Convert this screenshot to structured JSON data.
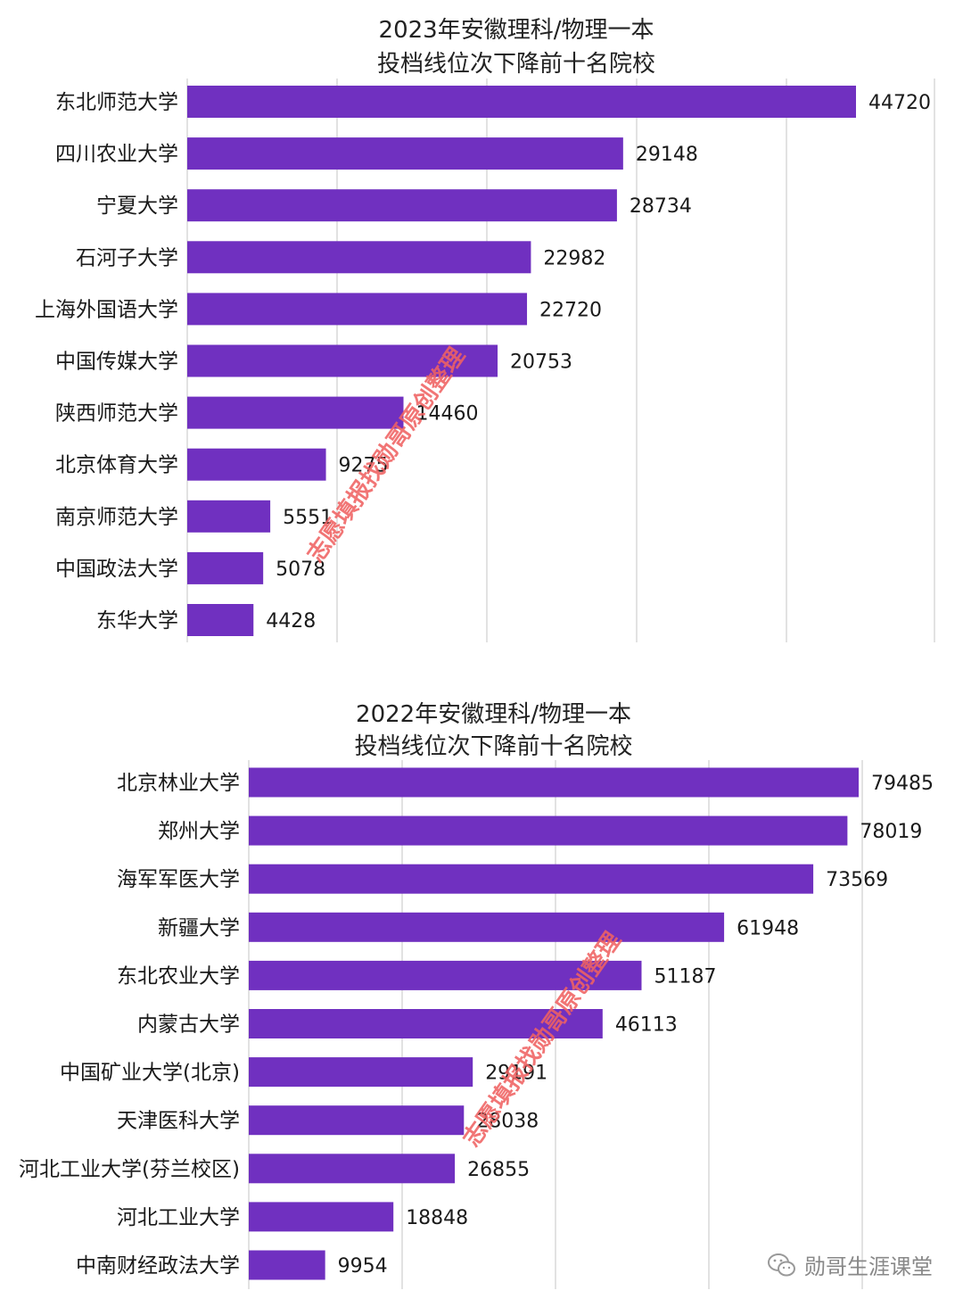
{
  "chart_data": [
    {
      "type": "bar",
      "orientation": "horizontal",
      "title_lines": [
        "2023年安徽理科/物理一本",
        "投档线位次下降前十名院校"
      ],
      "categories": [
        "东北师范大学",
        "四川农业大学",
        "宁夏大学",
        "石河子大学",
        "上海外国语大学",
        "中国传媒大学",
        "陕西师范大学",
        "北京体育大学",
        "南京师范大学",
        "中国政法大学",
        "东华大学"
      ],
      "values": [
        44720,
        29148,
        28734,
        22982,
        22720,
        20753,
        14460,
        9275,
        5551,
        5078,
        4428
      ],
      "xlim": [
        0,
        50000
      ],
      "grid": true,
      "bar_color": "#7030c0"
    },
    {
      "type": "bar",
      "orientation": "horizontal",
      "title_lines": [
        "2022年安徽理科/物理一本",
        "投档线位次下降前十名院校"
      ],
      "categories": [
        "北京林业大学",
        "郑州大学",
        "海军军医大学",
        "新疆大学",
        "东北农业大学",
        "内蒙古大学",
        "中国矿业大学(北京)",
        "天津医科大学",
        "河北工业大学(芬兰校区)",
        "河北工业大学",
        "中南财经政法大学"
      ],
      "values": [
        79485,
        78019,
        73569,
        61948,
        51187,
        46113,
        29191,
        28038,
        26855,
        18848,
        9954
      ],
      "xlim": [
        0,
        80000
      ],
      "grid": true,
      "bar_color": "#7030c0"
    }
  ],
  "watermark": "志愿填报找勋哥原创整理",
  "brand": {
    "name": "勋哥生涯课堂",
    "icon": "wechat-icon"
  }
}
